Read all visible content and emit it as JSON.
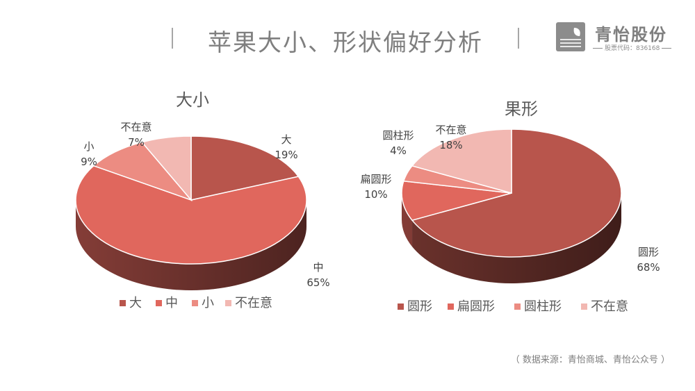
{
  "page": {
    "title": "苹果大小、形状偏好分析",
    "source_note": "（ 数据来源：青怡商城、青怡公众号 ）"
  },
  "logo": {
    "name": "青怡股份",
    "stock_code": "股票代码：836168",
    "icon": "leaf-logo-icon"
  },
  "chart_data": [
    {
      "type": "pie",
      "title": "大小",
      "labels": [
        "大",
        "中",
        "小",
        "不在意"
      ],
      "values": [
        19,
        65,
        9,
        7
      ],
      "value_labels": [
        "19%",
        "65%",
        "9%",
        "7%"
      ],
      "colors": [
        "#b8554c",
        "#e0675d",
        "#ec8c82",
        "#f2b8b2"
      ],
      "legend_position": "bottom",
      "style": "3d"
    },
    {
      "type": "pie",
      "title": "果形",
      "labels": [
        "圆形",
        "扁圆形",
        "圆柱形",
        "不在意"
      ],
      "values": [
        68,
        10,
        4,
        18
      ],
      "value_labels": [
        "68%",
        "10%",
        "4%",
        "18%"
      ],
      "colors": [
        "#b8554c",
        "#e0675d",
        "#ec8c82",
        "#f2b8b2"
      ],
      "legend_position": "bottom",
      "style": "3d"
    }
  ]
}
